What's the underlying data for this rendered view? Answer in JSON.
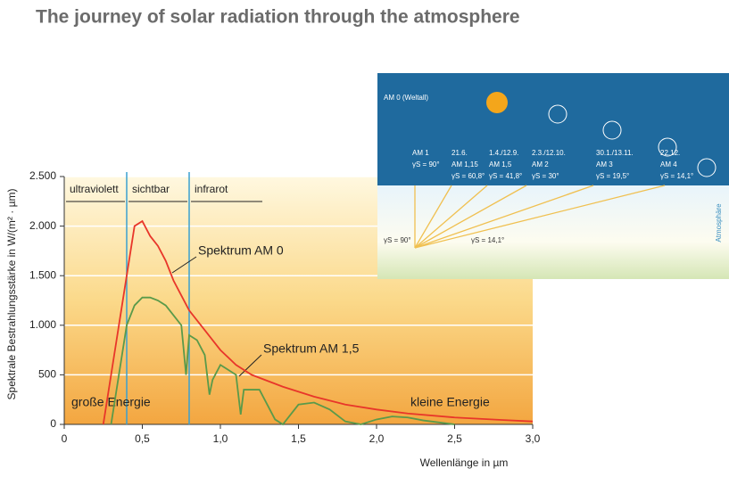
{
  "chart_data": {
    "type": "line",
    "title": "The journey of solar radiation through the atmosphere",
    "y_label": "Spektrale Bestrahlungsstärke in W/(m² · µm)",
    "x_label": "Wellenlänge in µm",
    "xlim": [
      0,
      3
    ],
    "ylim": [
      0,
      2500
    ],
    "xticks": [
      0,
      {
        "value": 0.5,
        "label": "0,5"
      },
      {
        "value": 1,
        "label": "1,0"
      },
      {
        "value": 1.5,
        "label": "1,5"
      },
      {
        "value": 2,
        "label": "2,0"
      },
      {
        "value": 2.5,
        "label": "2,5"
      },
      {
        "value": 3,
        "label": "3,0"
      }
    ],
    "yticks": [
      0,
      500,
      {
        "value": 1000,
        "label": "1.000"
      },
      {
        "value": 1500,
        "label": "1.500"
      },
      {
        "value": 2000,
        "label": "2.000"
      },
      {
        "value": 2500,
        "label": "2.500"
      }
    ],
    "grid": true,
    "regions": [
      {
        "label": "ultraviolett",
        "from": 0,
        "to": 0.4
      },
      {
        "label": "sichtbar",
        "from": 0.4,
        "to": 0.8
      },
      {
        "label": "infrarot",
        "from": 0.8,
        "to": 1.28
      }
    ],
    "annotations": [
      "Spektrum AM 0",
      "Spektrum AM 1,5",
      "große Energie",
      "kleine Energie"
    ],
    "series": [
      {
        "name": "AM 0",
        "color": "#e8362a",
        "x": [
          0.25,
          0.3,
          0.35,
          0.4,
          0.45,
          0.5,
          0.55,
          0.6,
          0.65,
          0.7,
          0.75,
          0.8,
          0.9,
          1.0,
          1.1,
          1.2,
          1.4,
          1.6,
          1.8,
          2.0,
          2.2,
          2.5,
          2.8,
          3.0
        ],
        "values": [
          0,
          500,
          1000,
          1500,
          2000,
          2050,
          1900,
          1800,
          1650,
          1450,
          1300,
          1150,
          950,
          750,
          600,
          500,
          380,
          280,
          200,
          150,
          110,
          70,
          45,
          30
        ]
      },
      {
        "name": "AM 1,5",
        "color": "#5a9a4a",
        "x": [
          0.3,
          0.35,
          0.4,
          0.45,
          0.5,
          0.55,
          0.6,
          0.65,
          0.7,
          0.75,
          0.78,
          0.8,
          0.85,
          0.9,
          0.93,
          0.95,
          1.0,
          1.1,
          1.13,
          1.15,
          1.25,
          1.35,
          1.4,
          1.5,
          1.6,
          1.7,
          1.8,
          1.9,
          2.0,
          2.1,
          2.2,
          2.3,
          2.5
        ],
        "values": [
          0,
          500,
          1000,
          1200,
          1280,
          1280,
          1250,
          1200,
          1100,
          1000,
          500,
          900,
          850,
          700,
          300,
          450,
          600,
          500,
          100,
          350,
          350,
          50,
          0,
          200,
          220,
          150,
          30,
          0,
          50,
          80,
          70,
          40,
          0
        ]
      }
    ]
  },
  "inset": {
    "title": "AM 0 (Weltall)",
    "side_label": "Atmosphäre",
    "columns": [
      {
        "am": "AM 1",
        "angle": "γS = 90°"
      },
      {
        "date": "21.6.",
        "am": "AM 1,15",
        "angle": "γS = 60,8°"
      },
      {
        "date": "1.4./12.9.",
        "am": "AM 1,5",
        "angle": "γS = 41,8°"
      },
      {
        "date": "2.3./12.10.",
        "am": "AM 2",
        "angle": "γS = 30°"
      },
      {
        "date": "30.1./13.11.",
        "am": "AM 3",
        "angle": "γS = 19,5°"
      },
      {
        "date": "22.12.",
        "am": "AM 4",
        "angle": "γS = 14,1°"
      }
    ],
    "ground_labels": [
      "γS = 90°",
      "γS = 14,1°"
    ]
  }
}
